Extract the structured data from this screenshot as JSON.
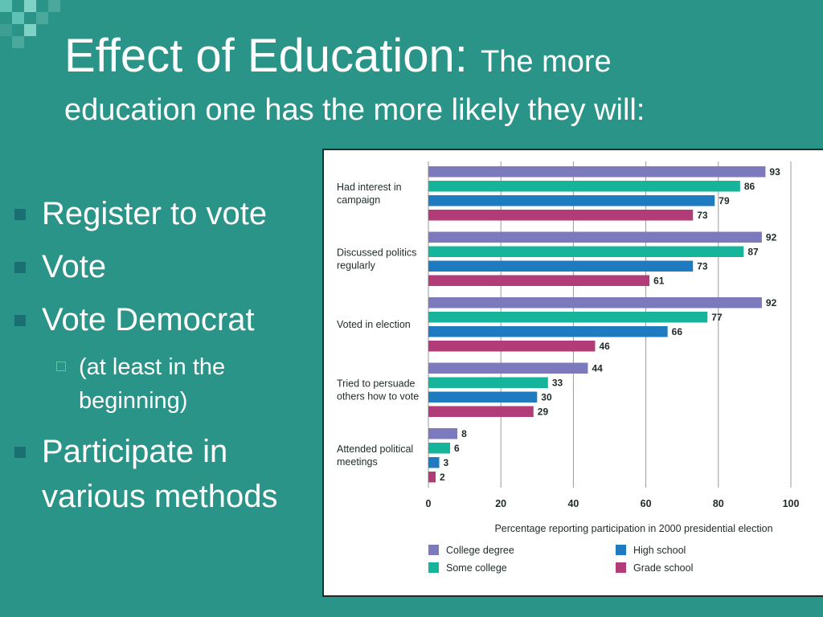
{
  "slide": {
    "title_main": "Effect of Education:",
    "title_sub": "The more",
    "title_line2": "education one has the more likely they will:"
  },
  "bullets": [
    {
      "level": 1,
      "text": "Register to vote"
    },
    {
      "level": 1,
      "text": "Vote"
    },
    {
      "level": 1,
      "text": "Vote Democrat"
    },
    {
      "level": 2,
      "text": "(at least in the beginning)"
    },
    {
      "level": 1,
      "text": "Participate in various methods"
    }
  ],
  "chart_data": {
    "type": "bar",
    "orientation": "horizontal",
    "categories": [
      [
        "Had interest in",
        "campaign"
      ],
      [
        "Discussed politics",
        "regularly"
      ],
      [
        "Voted in election"
      ],
      [
        "Tried to persuade",
        "others how to vote"
      ],
      [
        "Attended political",
        "meetings"
      ]
    ],
    "series": [
      {
        "name": "College degree",
        "color": "#7c79bd",
        "values": [
          93,
          92,
          92,
          44,
          8
        ]
      },
      {
        "name": "Some college",
        "color": "#16b59b",
        "values": [
          86,
          87,
          77,
          33,
          6
        ]
      },
      {
        "name": "High school",
        "color": "#1f7bc0",
        "values": [
          79,
          73,
          66,
          30,
          3
        ]
      },
      {
        "name": "Grade school",
        "color": "#b23c77",
        "values": [
          73,
          61,
          46,
          29,
          2
        ]
      }
    ],
    "xlim": [
      0,
      100
    ],
    "xticks": [
      0,
      20,
      40,
      60,
      80,
      100
    ],
    "xlabel": "Percentage reporting participation in 2000 presidential election",
    "grid": true,
    "legend": "bottom"
  }
}
